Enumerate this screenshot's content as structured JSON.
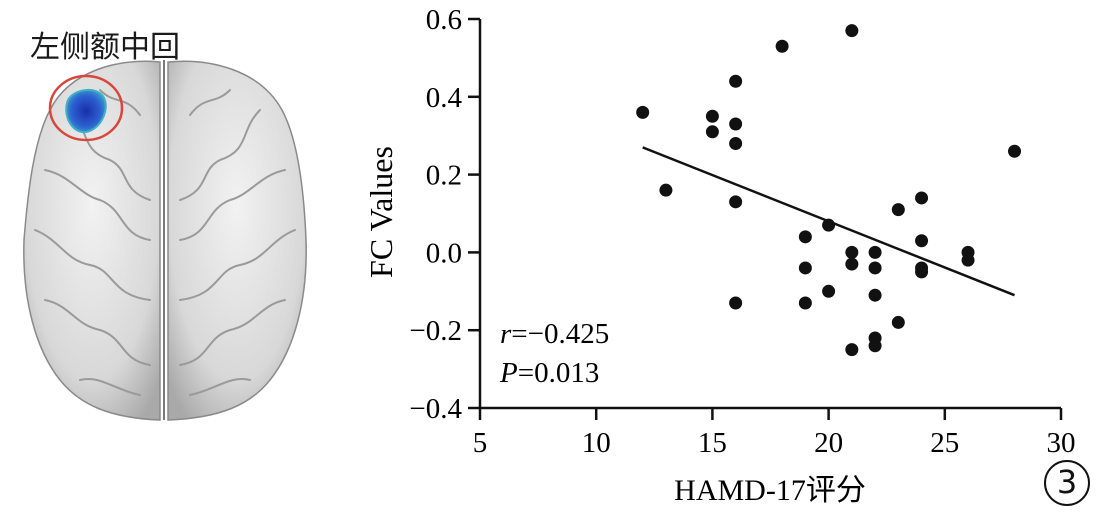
{
  "brain_image": {
    "title": "左侧额中回",
    "highlight_color": "#1a3fb0",
    "circle_color": "#d9463a"
  },
  "panel_number": "3",
  "chart_data": {
    "type": "scatter",
    "title": "",
    "xlabel": "HAMD-17评分",
    "ylabel": "FC Values",
    "xlim": [
      5,
      30
    ],
    "ylim": [
      -0.4,
      0.6
    ],
    "x_ticks": [
      "5",
      "10",
      "15",
      "20",
      "25",
      "30"
    ],
    "y_ticks": [
      "−0.4",
      "−0.2",
      "0.0",
      "0.2",
      "0.4",
      "0.6"
    ],
    "grid": false,
    "points": [
      {
        "x": 12,
        "y": 0.36
      },
      {
        "x": 13,
        "y": 0.16
      },
      {
        "x": 15,
        "y": 0.35
      },
      {
        "x": 15,
        "y": 0.31
      },
      {
        "x": 16,
        "y": 0.44
      },
      {
        "x": 16,
        "y": 0.33
      },
      {
        "x": 16,
        "y": 0.28
      },
      {
        "x": 16,
        "y": 0.13
      },
      {
        "x": 16,
        "y": -0.13
      },
      {
        "x": 18,
        "y": 0.53
      },
      {
        "x": 19,
        "y": 0.04
      },
      {
        "x": 19,
        "y": -0.04
      },
      {
        "x": 19,
        "y": -0.13
      },
      {
        "x": 20,
        "y": 0.07
      },
      {
        "x": 20,
        "y": -0.1
      },
      {
        "x": 21,
        "y": 0.57
      },
      {
        "x": 21,
        "y": 0.0
      },
      {
        "x": 21,
        "y": -0.03
      },
      {
        "x": 21,
        "y": -0.25
      },
      {
        "x": 22,
        "y": 0.0
      },
      {
        "x": 22,
        "y": -0.04
      },
      {
        "x": 22,
        "y": -0.11
      },
      {
        "x": 22,
        "y": -0.22
      },
      {
        "x": 22,
        "y": -0.24
      },
      {
        "x": 23,
        "y": 0.11
      },
      {
        "x": 23,
        "y": -0.18
      },
      {
        "x": 24,
        "y": 0.14
      },
      {
        "x": 24,
        "y": 0.03
      },
      {
        "x": 24,
        "y": -0.04
      },
      {
        "x": 24,
        "y": -0.05
      },
      {
        "x": 26,
        "y": 0.0
      },
      {
        "x": 26,
        "y": -0.02
      },
      {
        "x": 28,
        "y": 0.26
      }
    ],
    "regression_line": {
      "x": [
        12,
        28
      ],
      "y": [
        0.27,
        -0.11
      ]
    },
    "stats": {
      "r_label": "r",
      "r_value": "=−0.425",
      "p_label": "P",
      "p_value": "=0.013"
    },
    "marker_color": "#111111"
  }
}
